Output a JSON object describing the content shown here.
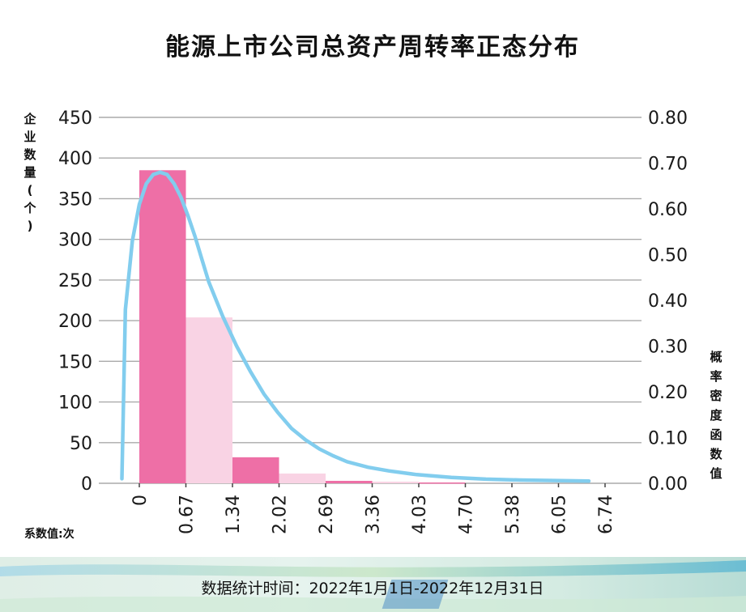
{
  "title": "能源上市公司总资产周转率正态分布",
  "left_axis_label": "企业数量(个)",
  "right_axis_label": "概率密度函数值",
  "x_note": "系数值:次",
  "footer": "数据统计时间：2022年1月1日-2022年12月31日",
  "colors": {
    "dark_bar": "#ee6fa6",
    "light_bar": "#f9d3e4",
    "curve": "#82cdee",
    "grid": "#aaaaaa"
  },
  "chart_data": {
    "type": "bar",
    "title": "能源上市公司总资产周转率正态分布",
    "xlabel": "系数值:次",
    "ylabel": "企业数量(个)",
    "y2label": "概率密度函数值",
    "x_ticks": [
      "0",
      "0.67",
      "1.34",
      "2.02",
      "2.69",
      "3.36",
      "4.03",
      "4.70",
      "5.38",
      "6.05",
      "6.74"
    ],
    "ylim": [
      0,
      450
    ],
    "y_ticks": [
      "0",
      "50",
      "100",
      "150",
      "200",
      "250",
      "300",
      "350",
      "400",
      "450"
    ],
    "y2lim": [
      0,
      0.8
    ],
    "y2_ticks": [
      "0.00",
      "0.10",
      "0.20",
      "0.30",
      "0.40",
      "0.50",
      "0.60",
      "0.70",
      "0.80"
    ],
    "grid": true,
    "bins": [
      {
        "from": 0,
        "to": 0.67,
        "value": 385
      },
      {
        "from": 0.67,
        "to": 1.34,
        "value": 204
      },
      {
        "from": 1.34,
        "to": 2.02,
        "value": 32
      },
      {
        "from": 2.02,
        "to": 2.69,
        "value": 12
      },
      {
        "from": 2.69,
        "to": 3.36,
        "value": 3
      },
      {
        "from": 3.36,
        "to": 4.03,
        "value": 2
      },
      {
        "from": 4.03,
        "to": 4.7,
        "value": 1
      },
      {
        "from": 4.7,
        "to": 5.38,
        "value": 0
      },
      {
        "from": 5.38,
        "to": 6.05,
        "value": 0
      },
      {
        "from": 6.05,
        "to": 6.74,
        "value": 0
      }
    ],
    "density_curve": {
      "type": "line",
      "x": [
        -0.25,
        -0.2,
        -0.1,
        0,
        0.1,
        0.2,
        0.3,
        0.4,
        0.5,
        0.6,
        0.7,
        0.8,
        0.9,
        1.0,
        1.2,
        1.4,
        1.6,
        1.8,
        2.0,
        2.2,
        2.4,
        2.6,
        2.8,
        3.0,
        3.3,
        3.6,
        4.0,
        4.5,
        5.0,
        5.5,
        6.0,
        6.5
      ],
      "y": [
        0.01,
        0.38,
        0.53,
        0.61,
        0.655,
        0.675,
        0.68,
        0.675,
        0.655,
        0.625,
        0.585,
        0.54,
        0.49,
        0.44,
        0.365,
        0.3,
        0.245,
        0.195,
        0.155,
        0.12,
        0.095,
        0.075,
        0.06,
        0.047,
        0.035,
        0.027,
        0.019,
        0.013,
        0.009,
        0.007,
        0.006,
        0.005
      ]
    }
  }
}
